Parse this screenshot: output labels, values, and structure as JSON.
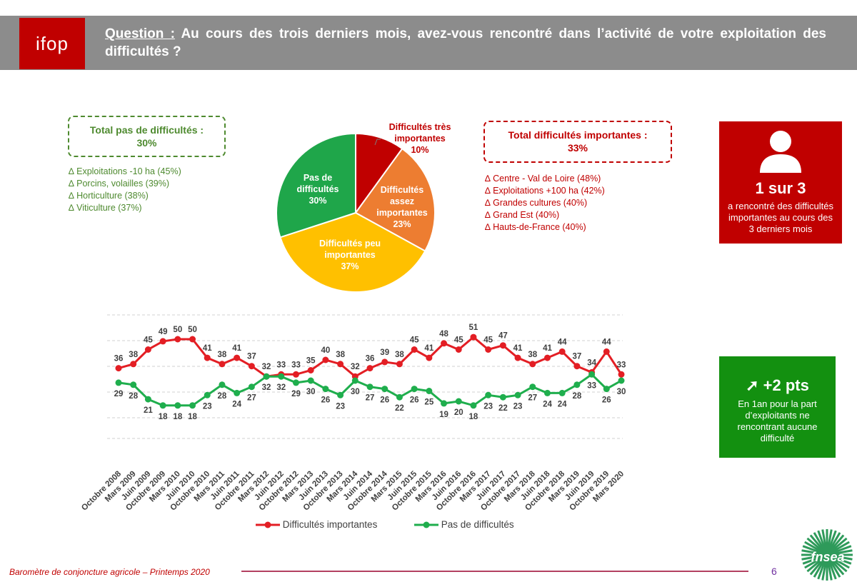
{
  "header": {
    "logo": "ifop",
    "question_label": "Question :",
    "question_text": "Au cours des trois derniers mois, avez-vous rencontré dans l’activité de votre exploitation des difficultés ?"
  },
  "box_green": {
    "title": "Total pas de difficultés :",
    "value": "30%"
  },
  "box_red": {
    "title": "Total difficultés importantes :",
    "value": "33%"
  },
  "list_green": [
    "∆ Exploitations -10 ha (45%)",
    "∆ Porcins, volailles (39%)",
    "∆ Horticulture (38%)",
    "∆ Viticulture (37%)"
  ],
  "list_red": [
    "∆ Centre - Val de Loire (48%)",
    "∆ Exploitations +100 ha (42%)",
    "∆ Grandes cultures (40%)",
    "∆ Grand Est (40%)",
    "∆ Hauts-de-France (40%)"
  ],
  "card_red": {
    "big": "1 sur 3",
    "text": "a rencontré des difficultés importantes au cours des 3 derniers mois"
  },
  "card_green": {
    "big": "➚ +2 pts",
    "text": "En 1an pour la part d’exploitants ne rencontrant aucune difficulté"
  },
  "colors": {
    "red": "#c00000",
    "orange": "#ed7d31",
    "yellow": "#ffc000",
    "green": "#1fa64a",
    "line_red": "#e31e24",
    "line_green": "#1fae4d"
  },
  "chart_data": [
    {
      "type": "pie",
      "slices": [
        {
          "label": "Difficultés très importantes",
          "value": 10,
          "display": "10%",
          "color": "#c00000"
        },
        {
          "label": "Difficultés assez importantes",
          "value": 23,
          "display": "23%",
          "color": "#ed7d31"
        },
        {
          "label": "Difficultés peu importantes",
          "value": 37,
          "display": "37%",
          "color": "#ffc000"
        },
        {
          "label": "Pas de difficultés",
          "value": 30,
          "display": "30%",
          "color": "#1fa64a"
        }
      ]
    },
    {
      "type": "line",
      "categories": [
        "Octobre 2008",
        "Mars 2009",
        "Juin 2009",
        "Octobre 2009",
        "Mars 2010",
        "Juin 2010",
        "Octobre 2010",
        "Mars 2011",
        "Juin 2011",
        "Octobre 2011",
        "Mars 2012",
        "Juin 2012",
        "Octobre 2012",
        "Mars 2013",
        "Juin 2013",
        "Octobre 2013",
        "Mars 2014",
        "Juin 2014",
        "Octobre 2014",
        "Mars 2015",
        "Juin 2015",
        "Octobre 2015",
        "Mars 2016",
        "Juin 2016",
        "Octobre 2016",
        "Mars 2017",
        "Juin 2017",
        "Octobre 2017",
        "Mars 2018",
        "Juin 2018",
        "Octobre 2018",
        "Mars 2019",
        "Juin 2019",
        "Octobre 2019",
        "Mars 2020"
      ],
      "series": [
        {
          "name": "Difficultés importantes",
          "color": "#e31e24",
          "values": [
            36,
            38,
            45,
            49,
            50,
            50,
            41,
            38,
            41,
            37,
            32,
            33,
            33,
            35,
            40,
            38,
            32,
            36,
            39,
            38,
            45,
            41,
            48,
            45,
            51,
            45,
            47,
            41,
            38,
            41,
            44,
            37,
            34,
            44,
            33
          ]
        },
        {
          "name": "Pas de difficultés",
          "color": "#1fae4d",
          "values": [
            29,
            28,
            21,
            18,
            18,
            18,
            23,
            28,
            24,
            27,
            32,
            32,
            29,
            30,
            26,
            23,
            30,
            27,
            26,
            22,
            26,
            25,
            19,
            20,
            18,
            23,
            22,
            23,
            27,
            24,
            24,
            28,
            33,
            26,
            30
          ]
        }
      ],
      "legend": "bottom",
      "grid": true
    }
  ],
  "footer": {
    "text": "Baromètre de conjoncture agricole – Printemps 2020",
    "page": "6",
    "brand": "fnsea"
  }
}
